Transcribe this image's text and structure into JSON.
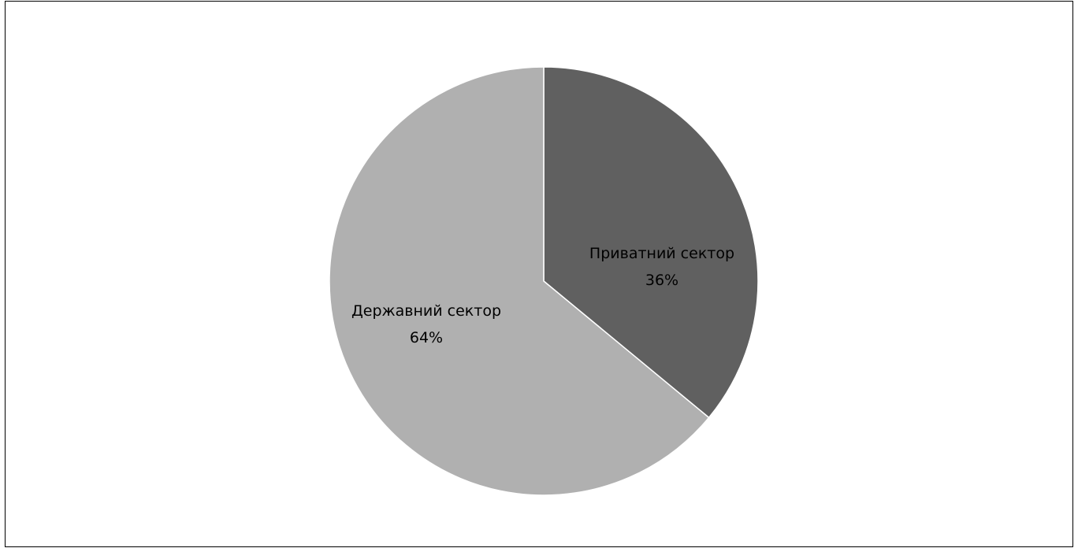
{
  "chart_data": {
    "type": "pie",
    "slices": [
      {
        "label": "Приватний сектор",
        "value": 36,
        "percent_label": "36%",
        "color": "#606060"
      },
      {
        "label": "Державний сектор",
        "value": 64,
        "percent_label": "64%",
        "color": "#b0b0b0"
      }
    ],
    "title": "",
    "legend": "none",
    "start_angle": "12 o'clock",
    "direction": "clockwise"
  }
}
